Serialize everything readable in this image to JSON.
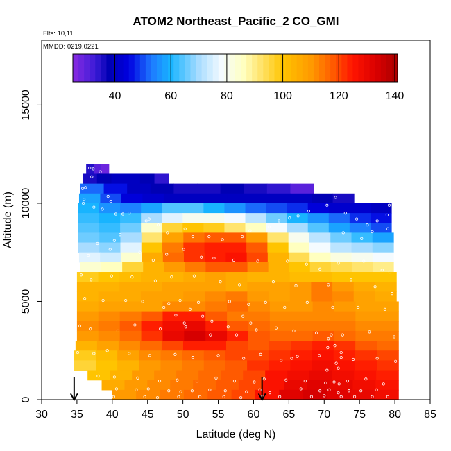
{
  "header": {
    "title": "ATOM2 Northeast_Pacific_2 CO_GMI",
    "flights": "Flts: 10,11",
    "dates": "MMDD: 0219,0221"
  },
  "colors": {
    "stops": [
      {
        "v": 25,
        "c": "#8a2be2"
      },
      {
        "v": 33,
        "c": "#3b1bd6"
      },
      {
        "v": 38,
        "c": "#0000b4"
      },
      {
        "v": 45,
        "c": "#0000e0"
      },
      {
        "v": 53,
        "c": "#1e78ff"
      },
      {
        "v": 60,
        "c": "#18b4ff"
      },
      {
        "v": 70,
        "c": "#a8dcff"
      },
      {
        "v": 78,
        "c": "#f4fbff"
      },
      {
        "v": 86,
        "c": "#ffffc0"
      },
      {
        "v": 93,
        "c": "#ffe060"
      },
      {
        "v": 100,
        "c": "#ffc400"
      },
      {
        "v": 110,
        "c": "#ff9a00"
      },
      {
        "v": 118,
        "c": "#ff5a00"
      },
      {
        "v": 125,
        "c": "#ff1400"
      },
      {
        "v": 133,
        "c": "#dc0000"
      },
      {
        "v": 141,
        "c": "#a80000"
      }
    ],
    "point_marker": "#ffffff",
    "arrow": "#000000"
  },
  "chart_data": {
    "type": "heatmap",
    "title": "ATOM2 Northeast_Pacific_2 CO_GMI",
    "xlabel": "Latitude (deg N)",
    "ylabel": "Altitude (m)",
    "xlim": [
      30,
      85
    ],
    "ylim": [
      0,
      18300
    ],
    "xticks": [
      "30",
      "35",
      "40",
      "45",
      "50",
      "55",
      "60",
      "65",
      "70",
      "75",
      "80",
      "85"
    ],
    "yticks": [
      "0",
      "5000",
      "10000",
      "15000"
    ],
    "colorbar": {
      "range": [
        25,
        141
      ],
      "ticks": [
        "40",
        "60",
        "80",
        "100",
        "120",
        "140"
      ]
    },
    "layers": [
      {
        "top": 12000,
        "bottom": 11500,
        "x0": 36.3,
        "x1": 39.5,
        "values": [
          35,
          30,
          28
        ]
      },
      {
        "top": 11500,
        "bottom": 11000,
        "x0": 35.8,
        "x1": 48,
        "values": [
          36,
          38,
          40,
          40,
          38,
          34
        ]
      },
      {
        "top": 11000,
        "bottom": 10500,
        "x0": 35.5,
        "x1": 68.5,
        "values": [
          52,
          46,
          40,
          38,
          36,
          36,
          38,
          36,
          34,
          30
        ]
      },
      {
        "top": 10500,
        "bottom": 10000,
        "x0": 35.3,
        "x1": 74.2,
        "values": [
          58,
          50,
          44,
          42,
          40,
          40,
          40,
          40,
          40,
          40,
          40,
          38,
          36
        ]
      },
      {
        "top": 10000,
        "bottom": 9500,
        "x0": 35.2,
        "x1": 79.5,
        "values": [
          60,
          56,
          54,
          58,
          64,
          64,
          60,
          56,
          52,
          50,
          48,
          44,
          42,
          42,
          40
        ]
      },
      {
        "top": 9500,
        "bottom": 9000,
        "x0": 35.2,
        "x1": 79.5,
        "values": [
          62,
          60,
          62,
          70,
          76,
          80,
          80,
          78,
          72,
          66,
          60,
          56,
          52,
          48,
          46
        ]
      },
      {
        "top": 9000,
        "bottom": 8500,
        "x0": 35.2,
        "x1": 79.5,
        "values": [
          64,
          62,
          66,
          84,
          96,
          100,
          98,
          92,
          86,
          78,
          70,
          64,
          58,
          54,
          50
        ]
      },
      {
        "top": 8500,
        "bottom": 8000,
        "x0": 35.2,
        "x1": 79.8,
        "values": [
          66,
          64,
          70,
          92,
          108,
          115,
          118,
          118,
          110,
          92,
          80,
          72,
          66,
          62,
          58
        ]
      },
      {
        "top": 8000,
        "bottom": 7500,
        "x0": 35.2,
        "x1": 79.8,
        "values": [
          70,
          68,
          76,
          100,
          114,
          122,
          124,
          124,
          118,
          100,
          86,
          78,
          72,
          70,
          68
        ]
      },
      {
        "top": 7500,
        "bottom": 7000,
        "x0": 35.3,
        "x1": 79.8,
        "values": [
          76,
          74,
          84,
          106,
          116,
          122,
          124,
          126,
          120,
          104,
          94,
          86,
          82,
          80,
          78
        ]
      },
      {
        "top": 7000,
        "bottom": 6500,
        "x0": 35.5,
        "x1": 79.8,
        "values": [
          84,
          86,
          96,
          104,
          110,
          114,
          118,
          118,
          112,
          104,
          100,
          96,
          94,
          92,
          90
        ]
      },
      {
        "top": 6500,
        "bottom": 6000,
        "x0": 35,
        "x1": 80.2,
        "values": [
          98,
          100,
          102,
          104,
          104,
          106,
          108,
          106,
          104,
          104,
          102,
          102,
          100,
          100,
          100
        ]
      },
      {
        "top": 6000,
        "bottom": 5500,
        "x0": 35,
        "x1": 80.2,
        "values": [
          104,
          104,
          106,
          106,
          108,
          108,
          108,
          106,
          108,
          108,
          110,
          114,
          110,
          106,
          104
        ]
      },
      {
        "top": 5500,
        "bottom": 5000,
        "x0": 35,
        "x1": 80.2,
        "values": [
          104,
          106,
          106,
          108,
          108,
          110,
          112,
          114,
          110,
          108,
          110,
          114,
          112,
          108,
          106
        ]
      },
      {
        "top": 5000,
        "bottom": 4500,
        "x0": 35,
        "x1": 80.5,
        "values": [
          106,
          108,
          108,
          108,
          112,
          112,
          114,
          116,
          112,
          110,
          110,
          112,
          110,
          108,
          108
        ]
      },
      {
        "top": 4500,
        "bottom": 4000,
        "x0": 35,
        "x1": 80.5,
        "values": [
          110,
          112,
          114,
          118,
          124,
          124,
          118,
          114,
          114,
          112,
          112,
          112,
          112,
          110,
          110
        ]
      },
      {
        "top": 4000,
        "bottom": 3500,
        "x0": 35,
        "x1": 80.5,
        "values": [
          112,
          114,
          118,
          124,
          128,
          130,
          124,
          118,
          116,
          114,
          114,
          114,
          114,
          112,
          112
        ]
      },
      {
        "top": 3500,
        "bottom": 3000,
        "x0": 35,
        "x1": 80.5,
        "values": [
          110,
          112,
          116,
          122,
          130,
          134,
          130,
          124,
          118,
          116,
          116,
          118,
          116,
          114,
          114
        ]
      },
      {
        "top": 3000,
        "bottom": 2500,
        "x0": 34.8,
        "x1": 80.5,
        "values": [
          104,
          108,
          112,
          116,
          120,
          124,
          124,
          120,
          118,
          120,
          122,
          124,
          122,
          118,
          116
        ]
      },
      {
        "top": 2500,
        "bottom": 2000,
        "x0": 34.6,
        "x1": 80.5,
        "values": [
          98,
          102,
          108,
          112,
          114,
          116,
          118,
          120,
          120,
          122,
          124,
          126,
          124,
          122,
          120
        ]
      },
      {
        "top": 2000,
        "bottom": 1500,
        "x0": 34.6,
        "x1": 80.5,
        "values": [
          96,
          100,
          104,
          110,
          112,
          114,
          116,
          118,
          122,
          124,
          126,
          128,
          126,
          124,
          122
        ]
      },
      {
        "top": 1500,
        "bottom": 1000,
        "x0": 36.5,
        "x1": 80.5,
        "values": [
          100,
          104,
          110,
          112,
          114,
          116,
          118,
          120,
          126,
          128,
          130,
          128,
          126,
          124
        ]
      },
      {
        "top": 1000,
        "bottom": 500,
        "x0": 38.5,
        "x1": 80.5,
        "values": [
          106,
          110,
          112,
          114,
          116,
          118,
          120,
          126,
          130,
          132,
          130,
          128,
          126
        ]
      },
      {
        "top": 500,
        "bottom": 0,
        "x0": 40,
        "x1": 80.5,
        "values": [
          110,
          112,
          114,
          116,
          118,
          120,
          126,
          132,
          134,
          132,
          130,
          128
        ]
      }
    ],
    "points": [
      [
        36.8,
        11800
      ],
      [
        37.3,
        11750
      ],
      [
        38.3,
        11600
      ],
      [
        37.1,
        11350
      ],
      [
        36.2,
        10800
      ],
      [
        35.8,
        10750
      ],
      [
        36.0,
        10200
      ],
      [
        35.9,
        10000
      ],
      [
        37.4,
        9800
      ],
      [
        38.6,
        9700
      ],
      [
        39.4,
        10350
      ],
      [
        39.8,
        10100
      ],
      [
        40.5,
        9450
      ],
      [
        41.5,
        9450
      ],
      [
        42.4,
        9500
      ],
      [
        44.8,
        9100
      ],
      [
        45.2,
        9200
      ],
      [
        46.5,
        8900
      ],
      [
        47.8,
        8500
      ],
      [
        50.3,
        8700
      ],
      [
        51.4,
        8300
      ],
      [
        53.7,
        8300
      ],
      [
        55.6,
        8150
      ],
      [
        58.4,
        8300
      ],
      [
        59.5,
        8600
      ],
      [
        62.2,
        8800
      ],
      [
        63.6,
        9100
      ],
      [
        65.1,
        9250
      ],
      [
        66.3,
        9350
      ],
      [
        67.8,
        9600
      ],
      [
        70.4,
        9900
      ],
      [
        71.6,
        10300
      ],
      [
        73.0,
        9500
      ],
      [
        74.6,
        9200
      ],
      [
        76.1,
        8900
      ],
      [
        77.5,
        9100
      ],
      [
        78.9,
        9400
      ],
      [
        79.2,
        9900
      ],
      [
        72.7,
        8500
      ],
      [
        75.3,
        8200
      ],
      [
        76.8,
        8550
      ],
      [
        79.0,
        8700
      ],
      [
        41.1,
        8400
      ],
      [
        40.3,
        8100
      ],
      [
        39.7,
        7650
      ],
      [
        37.9,
        7950
      ],
      [
        36.6,
        7350
      ],
      [
        43.9,
        7500
      ],
      [
        45.8,
        7100
      ],
      [
        47.7,
        7400
      ],
      [
        50.1,
        7650
      ],
      [
        52.6,
        7250
      ],
      [
        54.4,
        7200
      ],
      [
        57.2,
        7100
      ],
      [
        60.6,
        7050
      ],
      [
        64.8,
        7050
      ],
      [
        67.5,
        6900
      ],
      [
        69.4,
        6650
      ],
      [
        72.0,
        6950
      ],
      [
        75.6,
        7050
      ],
      [
        78.2,
        6600
      ],
      [
        79.3,
        6500
      ],
      [
        35.6,
        6350
      ],
      [
        37.0,
        6100
      ],
      [
        39.9,
        6300
      ],
      [
        42.8,
        6250
      ],
      [
        46.1,
        6050
      ],
      [
        48.4,
        6250
      ],
      [
        51.6,
        6300
      ],
      [
        55.3,
        6000
      ],
      [
        58.0,
        5850
      ],
      [
        62.8,
        6000
      ],
      [
        66.0,
        5800
      ],
      [
        70.6,
        5850
      ],
      [
        73.8,
        6100
      ],
      [
        77.2,
        5750
      ],
      [
        79.6,
        5400
      ],
      [
        36.1,
        5150
      ],
      [
        38.7,
        5050
      ],
      [
        41.9,
        5050
      ],
      [
        44.3,
        5000
      ],
      [
        47.3,
        4700
      ],
      [
        49.6,
        5050
      ],
      [
        52.2,
        4950
      ],
      [
        56.6,
        5000
      ],
      [
        59.3,
        4850
      ],
      [
        61.7,
        4950
      ],
      [
        64.4,
        4700
      ],
      [
        67.6,
        4950
      ],
      [
        71.2,
        4700
      ],
      [
        74.8,
        4700
      ],
      [
        78.6,
        4600
      ],
      [
        35.4,
        3750
      ],
      [
        36.9,
        3600
      ],
      [
        40.8,
        3500
      ],
      [
        43.2,
        3800
      ],
      [
        46.8,
        3600
      ],
      [
        50.4,
        3700
      ],
      [
        53.9,
        3300
      ],
      [
        57.6,
        3300
      ],
      [
        60.4,
        3550
      ],
      [
        63.2,
        3650
      ],
      [
        65.7,
        3500
      ],
      [
        68.9,
        3400
      ],
      [
        72.6,
        3300
      ],
      [
        76.4,
        3450
      ],
      [
        79.9,
        3200
      ],
      [
        35.1,
        2400
      ],
      [
        37.4,
        2350
      ],
      [
        39.3,
        2500
      ],
      [
        42.4,
        2350
      ],
      [
        45.3,
        2250
      ],
      [
        48.9,
        2300
      ],
      [
        51.4,
        2150
      ],
      [
        55.0,
        2250
      ],
      [
        58.6,
        2100
      ],
      [
        61.0,
        2300
      ],
      [
        63.9,
        2000
      ],
      [
        65.4,
        2100
      ],
      [
        66.2,
        2200
      ],
      [
        69.3,
        2250
      ],
      [
        72.4,
        2150
      ],
      [
        74.1,
        2050
      ],
      [
        77.5,
        2100
      ],
      [
        80.1,
        1950
      ],
      [
        35.2,
        1350
      ],
      [
        38.0,
        1200
      ],
      [
        40.3,
        1150
      ],
      [
        43.6,
        1100
      ],
      [
        46.7,
        950
      ],
      [
        49.2,
        1000
      ],
      [
        52.0,
        950
      ],
      [
        54.7,
        1100
      ],
      [
        57.3,
        950
      ],
      [
        60.1,
        900
      ],
      [
        61.5,
        1050
      ],
      [
        64.6,
        1000
      ],
      [
        67.3,
        950
      ],
      [
        70.2,
        850
      ],
      [
        71.4,
        900
      ],
      [
        72.1,
        800
      ],
      [
        73.3,
        950
      ],
      [
        75.9,
        1050
      ],
      [
        78.4,
        800
      ],
      [
        40.6,
        550
      ],
      [
        43.4,
        500
      ],
      [
        45.1,
        550
      ],
      [
        48.0,
        450
      ],
      [
        49.7,
        400
      ],
      [
        51.3,
        450
      ],
      [
        53.8,
        500
      ],
      [
        56.0,
        450
      ],
      [
        59.0,
        400
      ],
      [
        60.9,
        500
      ],
      [
        62.3,
        350
      ],
      [
        66.7,
        550
      ],
      [
        69.4,
        450
      ],
      [
        70.7,
        500
      ],
      [
        72.0,
        350
      ],
      [
        73.5,
        450
      ],
      [
        75.2,
        450
      ],
      [
        77.4,
        500
      ],
      [
        40.2,
        150
      ],
      [
        44.6,
        150
      ],
      [
        46.4,
        100
      ],
      [
        49.4,
        150
      ],
      [
        52.4,
        150
      ],
      [
        55.8,
        150
      ],
      [
        58.2,
        100
      ],
      [
        61.2,
        150
      ],
      [
        63.7,
        150
      ],
      [
        68.2,
        150
      ],
      [
        70.0,
        200
      ],
      [
        72.4,
        150
      ],
      [
        74.3,
        150
      ],
      [
        76.8,
        150
      ],
      [
        79.0,
        150
      ],
      [
        70.4,
        1500
      ],
      [
        70.5,
        2650
      ],
      [
        70.6,
        3100
      ],
      [
        71.5,
        2750
      ],
      [
        71.7,
        1850
      ],
      [
        72.0,
        1600
      ],
      [
        72.4,
        2400
      ],
      [
        71.0,
        3300
      ],
      [
        48.0,
        4900
      ],
      [
        49.0,
        4300
      ],
      [
        50.2,
        3900
      ],
      [
        51.0,
        4600
      ],
      [
        52.8,
        4250
      ],
      [
        54.1,
        4000
      ],
      [
        56.4,
        3700
      ],
      [
        58.5,
        4250
      ],
      [
        59.6,
        3900
      ]
    ],
    "arrows": [
      34.6,
      61.2
    ]
  }
}
